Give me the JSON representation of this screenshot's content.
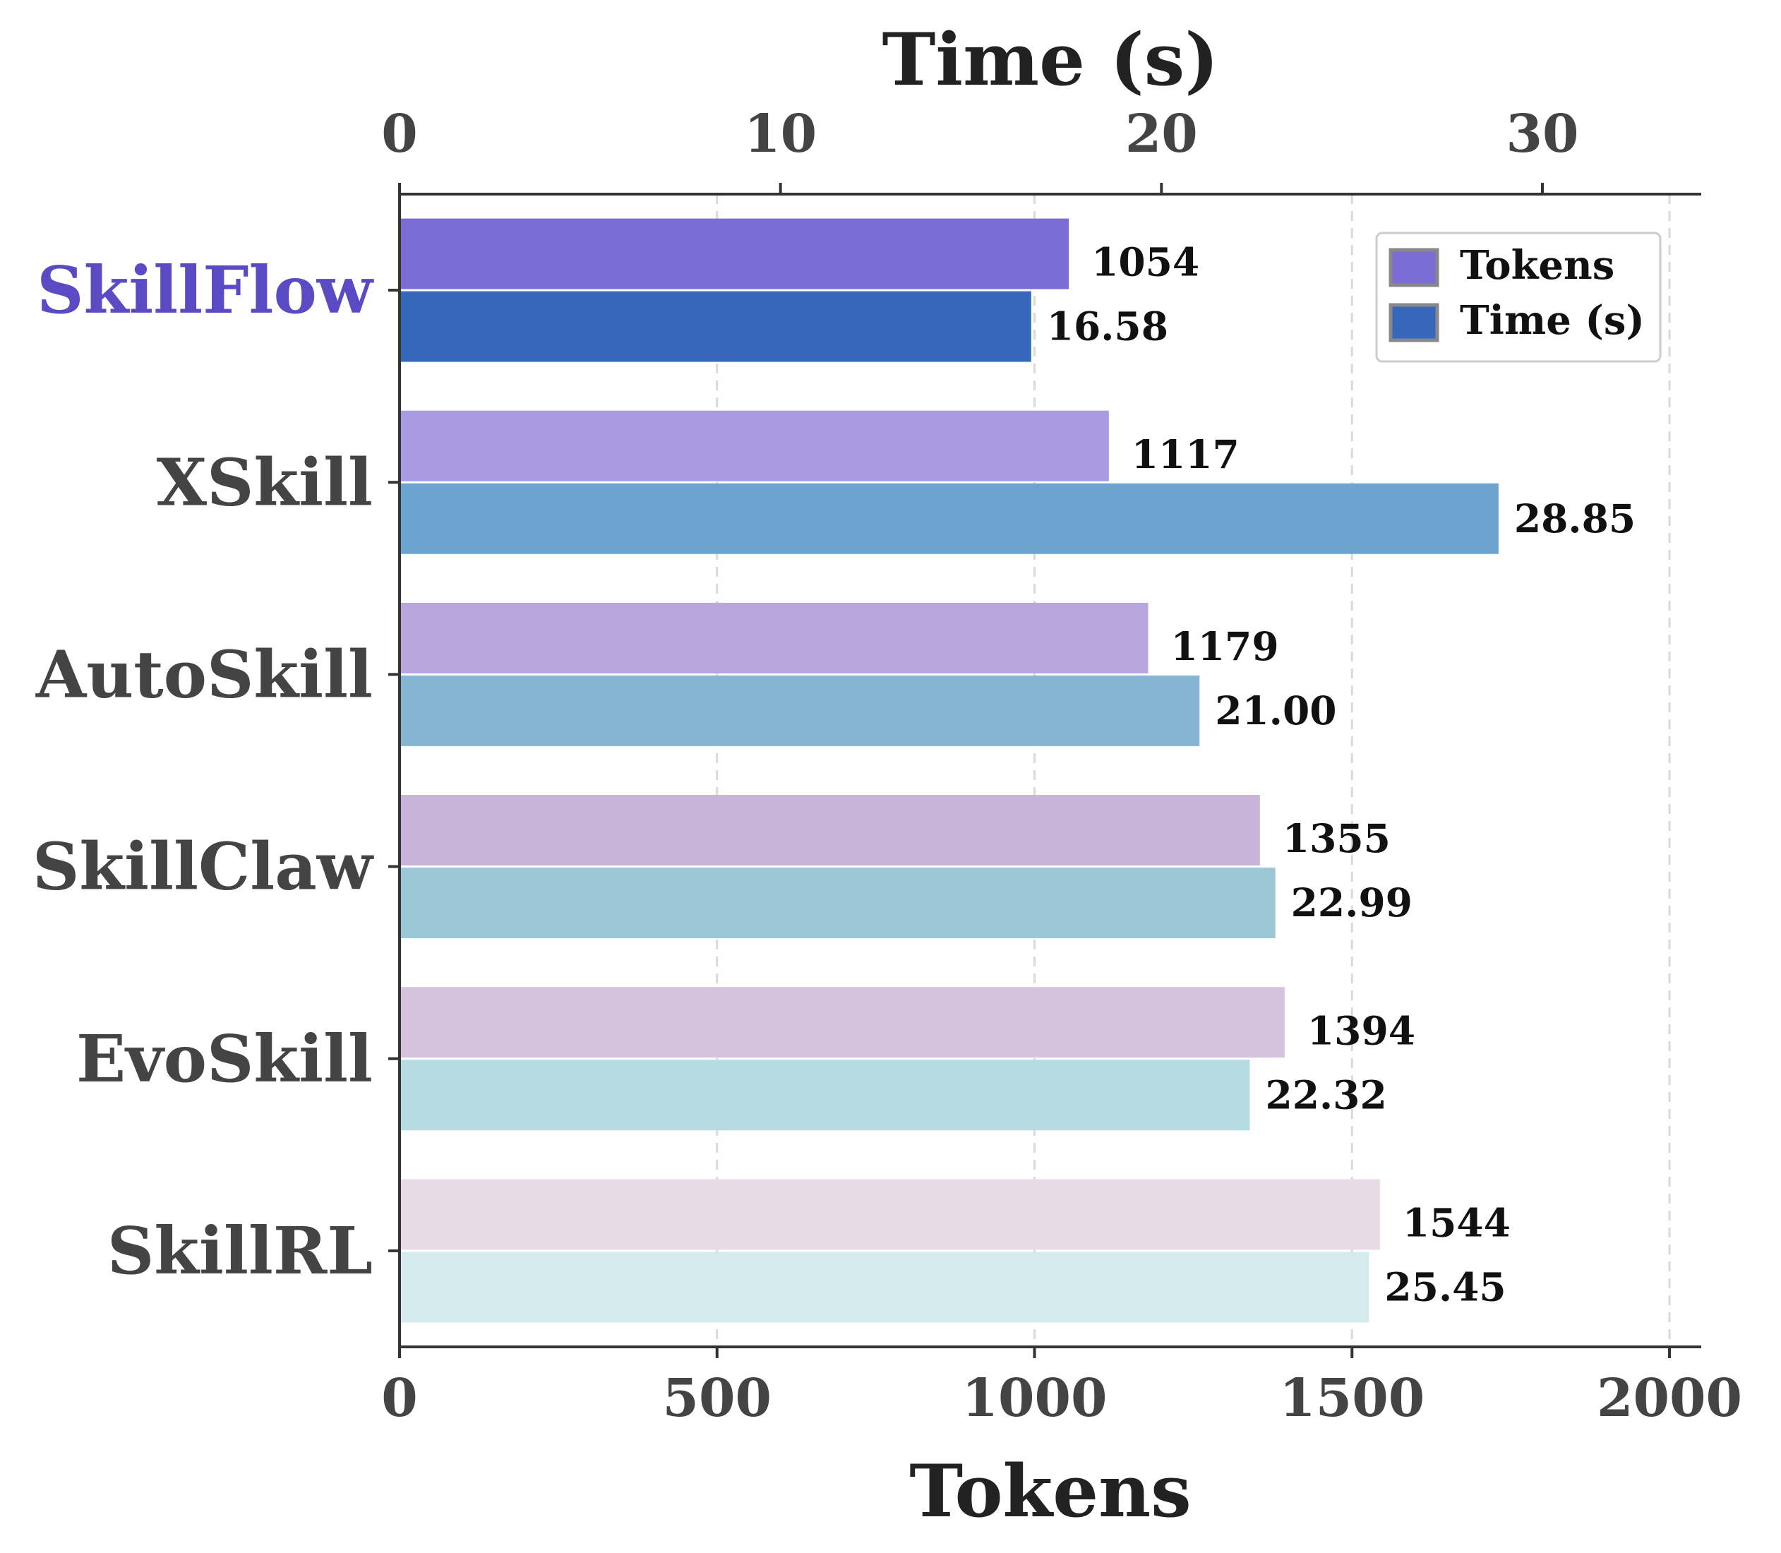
{
  "chart_data": {
    "type": "bar",
    "orientation": "horizontal",
    "categories": [
      "SkillFlow",
      "XSkill",
      "AutoSkill",
      "SkillClaw",
      "EvoSkill",
      "SkillRL"
    ],
    "highlight_category": "SkillFlow",
    "highlight_color": "#5a4bc4",
    "category_label_color": "#444444",
    "series": [
      {
        "name": "Tokens",
        "axis": "bottom",
        "values": [
          1054,
          1117,
          1179,
          1355,
          1394,
          1544
        ],
        "labels": [
          "1054",
          "1117",
          "1179",
          "1355",
          "1394",
          "1544"
        ],
        "colors": [
          "#7b6cd6",
          "#a89be2",
          "#b7a5dc",
          "#c6b4d8",
          "#d4c3dd",
          "#e8dbe8"
        ],
        "legend_color": "#7b6cd6"
      },
      {
        "name": "Time (s)",
        "axis": "top",
        "values": [
          16.58,
          28.85,
          21.0,
          22.99,
          22.32,
          25.45
        ],
        "labels": [
          "16.58",
          "28.85",
          "21.00",
          "22.99",
          "22.32",
          "25.45"
        ],
        "colors": [
          "#3767bb",
          "#6da3cf",
          "#85b5d3",
          "#9bc7d7",
          "#b6dce2",
          "#d4eaec"
        ],
        "legend_color": "#3767bb"
      }
    ],
    "xlabel": "Tokens",
    "xlim": [
      0,
      2050
    ],
    "xticks": [
      0,
      500,
      1000,
      1500,
      2000
    ],
    "x2label": "Time (s)",
    "x2lim": [
      0,
      34.17
    ],
    "x2ticks": [
      0,
      10,
      20,
      30
    ],
    "grid": "vertical dashed",
    "legend_position": "top-right"
  }
}
